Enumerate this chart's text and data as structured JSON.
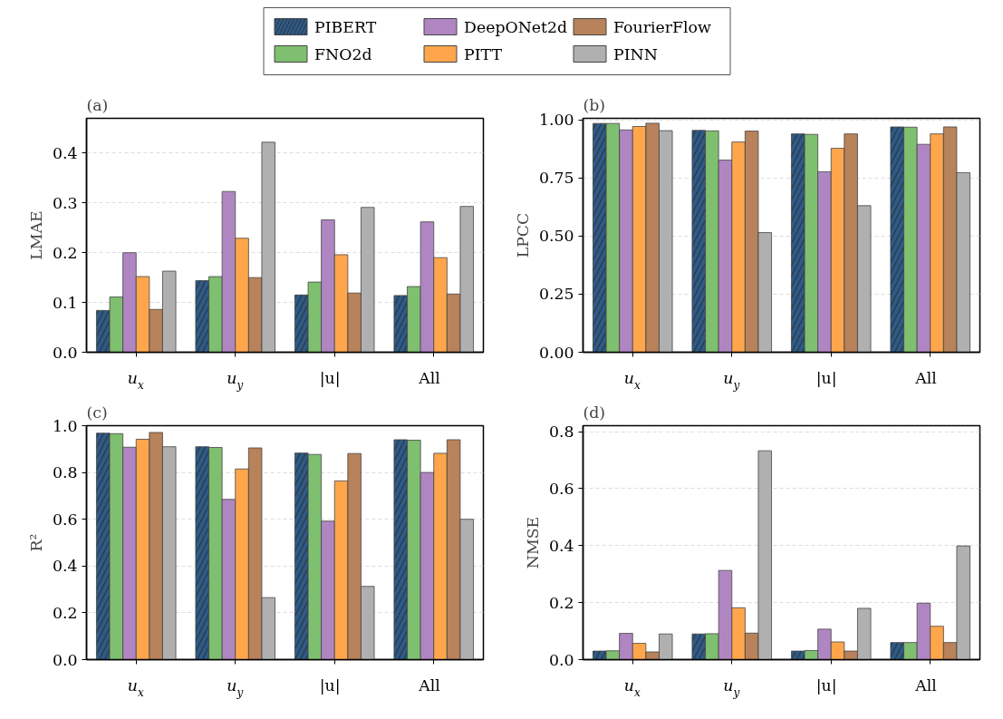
{
  "chart_data": [
    {
      "type": "bar",
      "title": "(a)",
      "ylabel": "LMAE",
      "categories": [
        "u$_{x}$",
        "u$_{y}$",
        "|u|",
        "All"
      ],
      "ylim": [
        0,
        0.47
      ],
      "yticks": [
        {
          "value": 0,
          "label": "0.0"
        },
        0.1,
        0.2,
        0.3,
        0.4
      ],
      "grid": "y",
      "legend": "top",
      "series": [
        {
          "name": "PIBERT",
          "color": "#2c5b8a",
          "values": [
            0.084,
            0.144,
            0.115,
            0.114
          ]
        },
        {
          "name": "FNO2d",
          "color": "#7fbf70",
          "values": [
            0.111,
            0.152,
            0.141,
            0.132
          ]
        },
        {
          "name": "DeepONet2d",
          "color": "#b086c2",
          "values": [
            0.2,
            0.323,
            0.266,
            0.262
          ]
        },
        {
          "name": "PITT",
          "color": "#ffa64d",
          "values": [
            0.152,
            0.229,
            0.196,
            0.19
          ]
        },
        {
          "name": "FourierFlow",
          "color": "#b8825a",
          "values": [
            0.086,
            0.15,
            0.119,
            0.117
          ]
        },
        {
          "name": "PINN",
          "color": "#b0b0b0",
          "values": [
            0.163,
            0.422,
            0.291,
            0.293
          ]
        }
      ]
    },
    {
      "type": "bar",
      "title": "(b)",
      "ylabel": "LPCC",
      "categories": [
        "u$_{x}$",
        "u$_{y}$",
        "|u|",
        "All"
      ],
      "ylim": [
        0,
        1.007
      ],
      "yticks": [
        {
          "value": 0,
          "label": "0.00"
        },
        0.25,
        {
          "value": 0.5,
          "label": "0.50"
        },
        0.75,
        {
          "value": 1,
          "label": "1.00"
        }
      ],
      "grid": "y",
      "series": [
        {
          "color": "#2c5b8a",
          "values": [
            0.985,
            0.955,
            0.94,
            0.97
          ]
        },
        {
          "color": "#7fbf70",
          "values": [
            0.985,
            0.953,
            0.938,
            0.969
          ]
        },
        {
          "color": "#b086c2",
          "values": [
            0.957,
            0.827,
            0.777,
            0.895
          ]
        },
        {
          "color": "#ffa64d",
          "values": [
            0.972,
            0.905,
            0.878,
            0.94
          ]
        },
        {
          "color": "#b8825a",
          "values": [
            0.986,
            0.952,
            0.94,
            0.97
          ]
        },
        {
          "color": "#b0b0b0",
          "values": [
            0.954,
            0.515,
            0.631,
            0.773
          ]
        }
      ]
    },
    {
      "type": "bar",
      "title": "(c)",
      "ylabel": "R²",
      "categories": [
        "u$_{x}$",
        "u$_{y}$",
        "|u|",
        "All"
      ],
      "ylim": [
        0,
        1.0
      ],
      "yticks": [
        {
          "value": 0,
          "label": "0.0"
        },
        0.2,
        0.4,
        0.6,
        0.8,
        {
          "value": 1,
          "label": "1.0"
        }
      ],
      "grid": "y",
      "series": [
        {
          "color": "#2c5b8a",
          "values": [
            0.968,
            0.91,
            0.883,
            0.94
          ]
        },
        {
          "color": "#7fbf70",
          "values": [
            0.966,
            0.907,
            0.877,
            0.938
          ]
        },
        {
          "color": "#b086c2",
          "values": [
            0.908,
            0.685,
            0.592,
            0.8
          ]
        },
        {
          "color": "#ffa64d",
          "values": [
            0.942,
            0.815,
            0.764,
            0.882
          ]
        },
        {
          "color": "#b8825a",
          "values": [
            0.971,
            0.905,
            0.881,
            0.94
          ]
        },
        {
          "color": "#b0b0b0",
          "values": [
            0.91,
            0.265,
            0.313,
            0.6
          ]
        }
      ]
    },
    {
      "type": "bar",
      "title": "(d)",
      "ylabel": "NMSE",
      "categories": [
        "u$_{x}$",
        "u$_{y}$",
        "|u|",
        "All"
      ],
      "ylim": [
        0,
        0.821
      ],
      "yticks": [
        {
          "value": 0,
          "label": "0.0"
        },
        0.2,
        0.4,
        0.6,
        0.8
      ],
      "grid": "y",
      "series": [
        {
          "color": "#2c5b8a",
          "values": [
            0.03,
            0.09,
            0.03,
            0.06
          ]
        },
        {
          "color": "#7fbf70",
          "values": [
            0.031,
            0.091,
            0.032,
            0.06
          ]
        },
        {
          "color": "#b086c2",
          "values": [
            0.092,
            0.313,
            0.107,
            0.198
          ]
        },
        {
          "color": "#ffa64d",
          "values": [
            0.057,
            0.182,
            0.062,
            0.117
          ]
        },
        {
          "color": "#b8825a",
          "values": [
            0.027,
            0.093,
            0.03,
            0.06
          ]
        },
        {
          "color": "#b0b0b0",
          "values": [
            0.09,
            0.733,
            0.18,
            0.399
          ]
        }
      ]
    }
  ]
}
